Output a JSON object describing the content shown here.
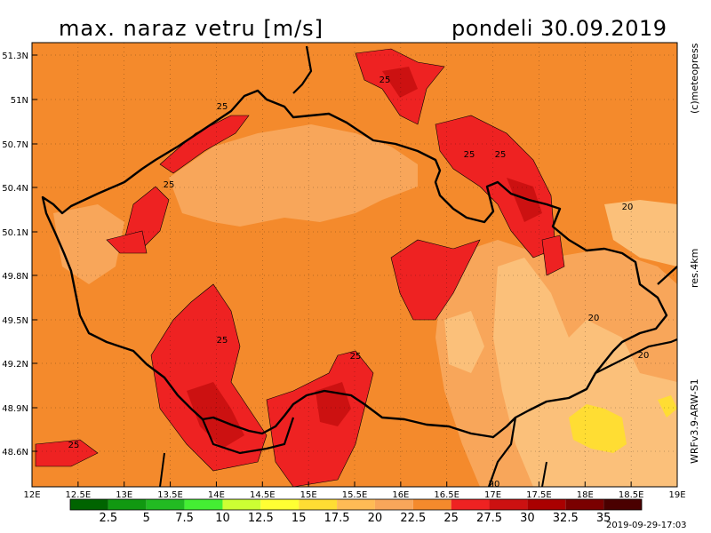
{
  "title": {
    "left": "max. naraz vetru [m/s]",
    "right": "pondeli 30.09.2019"
  },
  "side_labels": {
    "copyright": "(c)meteopress",
    "resolution": "res.4km",
    "model": "WRFv3.9-ARW-S1"
  },
  "timestamp": "2019-09-29-17:03",
  "lat_labels": [
    "51.3N",
    "51N",
    "50.7N",
    "50.4N",
    "50.1N",
    "49.8N",
    "49.5N",
    "49.2N",
    "48.9N",
    "48.6N"
  ],
  "lon_labels": [
    "12E",
    "12.5E",
    "13E",
    "13.5E",
    "14E",
    "14.5E",
    "15E",
    "15.5E",
    "16E",
    "16.5E",
    "17E",
    "17.5E",
    "18E",
    "18.5E",
    "19E"
  ],
  "contour_labels": [
    "25",
    "25",
    "25",
    "25",
    "25",
    "25",
    "20",
    "20",
    "20",
    "25",
    "20"
  ],
  "legend": {
    "values": [
      "2.5",
      "5",
      "7.5",
      "10",
      "12.5",
      "15",
      "17.5",
      "20",
      "22.5",
      "25",
      "27.5",
      "30",
      "32.5",
      "35"
    ],
    "colors": [
      "#006400",
      "#119911",
      "#22bb22",
      "#44ee33",
      "#ccff33",
      "#ffff33",
      "#ffdd33",
      "#ffbb55",
      "#f8a65a",
      "#f48a2c",
      "#ee2222",
      "#cc1111",
      "#aa0000",
      "#7a0000",
      "#4a0000"
    ]
  }
}
